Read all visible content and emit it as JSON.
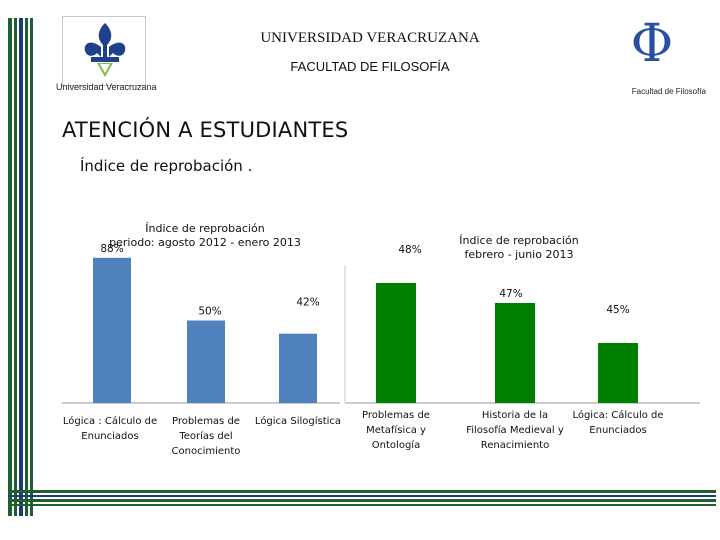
{
  "header": {
    "university": "UNIVERSIDAD VERACRUZANA",
    "faculty": "FACULTAD DE FILOSOFÍA",
    "left_logo_caption": "Universidad Veracruzana",
    "right_logo_caption": "Facultad de Filosofía",
    "right_logo_glyph": "Φ"
  },
  "main": {
    "title": "ATENCIÓN A ESTUDIANTES",
    "subtitle": "Índice de reprobación ."
  },
  "colors": {
    "blue_series": "#4f81bd",
    "green_series": "#008000",
    "stripe_dark": "#1f5e2f",
    "stripe_blue": "#1f3a7a"
  },
  "chart_data": [
    {
      "type": "bar",
      "title": [
        "Índice de reprobación",
        "periodo: agosto 2012 - enero 2013"
      ],
      "categories": [
        [
          "Lógica : Cálculo de",
          "Enunciados"
        ],
        [
          "Problemas de",
          "Teorías del",
          "Conocimiento"
        ],
        [
          "Lógica Silogística"
        ]
      ],
      "values": [
        88,
        50,
        42
      ],
      "value_labels": [
        "88%",
        "50%",
        "42%"
      ],
      "color": "#4f81bd",
      "ylim": [
        0,
        100
      ],
      "grid": false
    },
    {
      "type": "bar",
      "title": [
        "Índice de reprobación",
        "febrero - junio 2013"
      ],
      "categories": [
        [
          "Problemas de",
          "Metafísica y",
          "Ontología"
        ],
        [
          "Historia de la",
          "Filosofía Medieval y",
          "Renacimiento"
        ],
        [
          "Lógica: Cálculo de",
          "Enunciados"
        ]
      ],
      "values": [
        48,
        47,
        45
      ],
      "value_labels": [
        "48%",
        "47%",
        "45%"
      ],
      "color": "#008000",
      "ylim": [
        42,
        48.4
      ],
      "grid": false
    }
  ]
}
